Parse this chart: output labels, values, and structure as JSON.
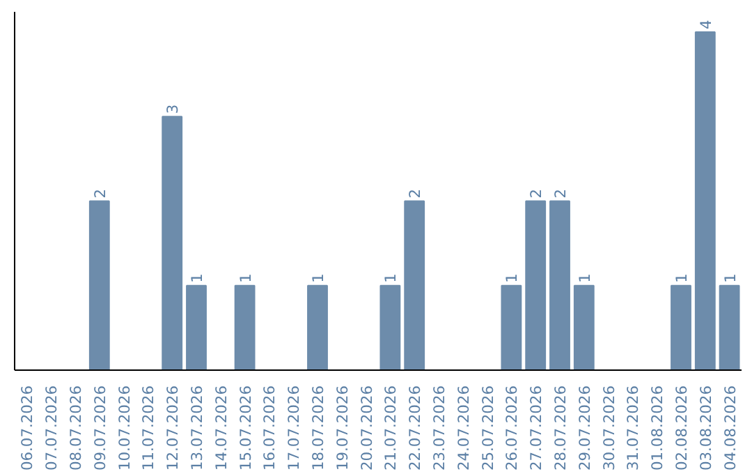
{
  "chart_data": {
    "type": "bar",
    "categories": [
      "06.07.2026",
      "07.07.2026",
      "08.07.2026",
      "09.07.2026",
      "10.07.2026",
      "11.07.2026",
      "12.07.2026",
      "13.07.2026",
      "14.07.2026",
      "15.07.2026",
      "16.07.2026",
      "17.07.2026",
      "18.07.2026",
      "19.07.2026",
      "20.07.2026",
      "21.07.2026",
      "22.07.2026",
      "23.07.2026",
      "24.07.2026",
      "25.07.2026",
      "26.07.2026",
      "27.07.2026",
      "28.07.2026",
      "29.07.2026",
      "30.07.2026",
      "31.07.2026",
      "01.08.2026",
      "02.08.2026",
      "03.08.2026",
      "04.08.2026"
    ],
    "values": [
      0,
      0,
      0,
      2,
      0,
      0,
      3,
      1,
      0,
      1,
      0,
      0,
      1,
      0,
      0,
      1,
      2,
      0,
      0,
      0,
      1,
      2,
      2,
      1,
      0,
      0,
      0,
      1,
      4,
      1
    ],
    "value_labels": [
      null,
      null,
      null,
      "2",
      null,
      null,
      "3",
      "1",
      null,
      "1",
      null,
      null,
      "1",
      null,
      null,
      "1",
      "2",
      null,
      null,
      null,
      "1",
      "2",
      "2",
      "1",
      null,
      null,
      null,
      "1",
      "4",
      "1"
    ],
    "color": "#6d8cab",
    "grid": false
  }
}
